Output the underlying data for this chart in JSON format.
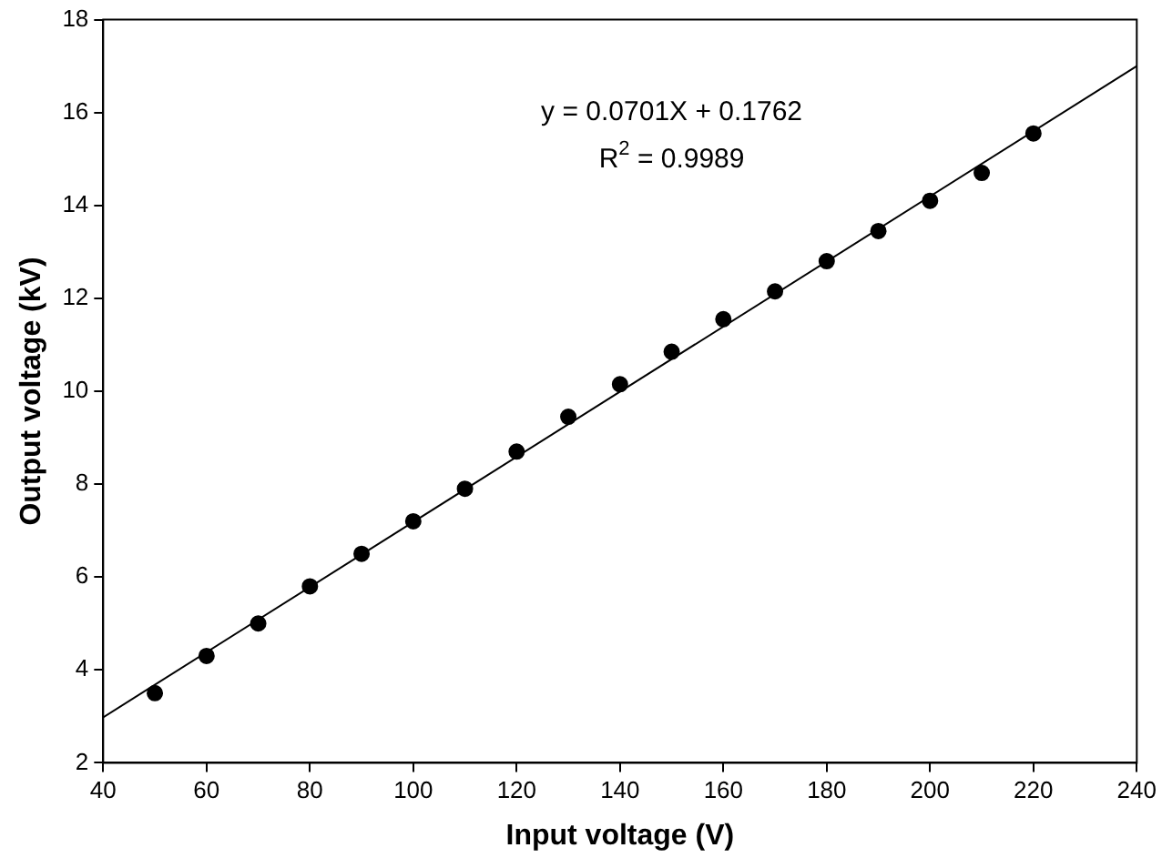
{
  "chart_data": {
    "type": "scatter",
    "xlabel": "Input voltage (V)",
    "ylabel": "Output voltage (kV)",
    "annotations": [
      "y = 0.0701X + 0.1762",
      "R$^{2}$ = 0.9989"
    ],
    "x": [
      50,
      60,
      70,
      80,
      90,
      100,
      110,
      120,
      130,
      140,
      150,
      160,
      170,
      180,
      190,
      200,
      210,
      220
    ],
    "series": [
      {
        "color": "#000000",
        "marker": "circle",
        "values": [
          3.5,
          4.3,
          5.0,
          5.8,
          6.5,
          7.2,
          7.9,
          8.7,
          9.45,
          10.15,
          10.85,
          11.55,
          12.15,
          12.8,
          13.45,
          14.1,
          14.7,
          15.55
        ]
      },
      {
        "type": "line",
        "color": "#000000",
        "marker": "none",
        "x": [
          40,
          240
        ],
        "values": [
          2.98,
          17.0
        ]
      }
    ],
    "xlim": [
      40,
      240
    ],
    "xticks": [
      40,
      60,
      80,
      100,
      120,
      140,
      160,
      180,
      200,
      220,
      240
    ],
    "ylim": [
      2,
      18
    ],
    "yticks": [
      2,
      4,
      6,
      8,
      10,
      12,
      14,
      16,
      18
    ],
    "grid": false,
    "legend": false
  }
}
